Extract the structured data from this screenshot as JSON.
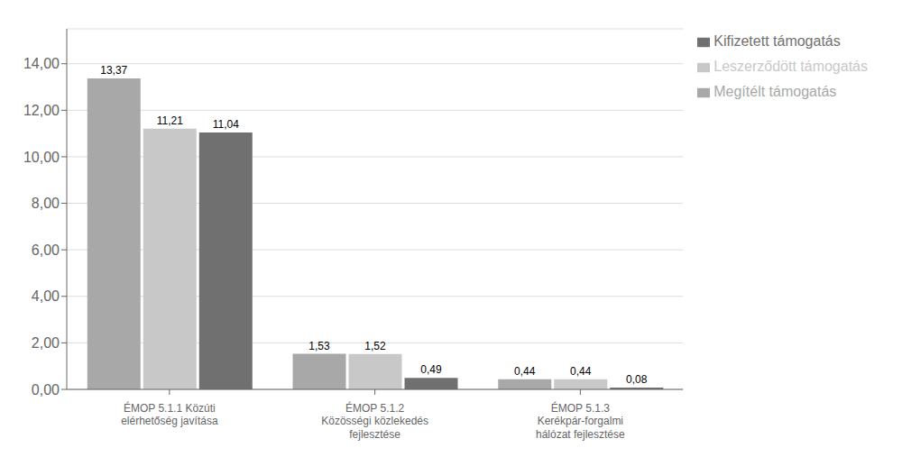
{
  "chart_data": {
    "type": "bar",
    "categories": [
      "ÉMOP 5.1.1 Közúti\nelérhetőség javítása",
      "ÉMOP 5.1.2\nKözösségi közlekedés\nfejlesztése",
      "ÉMOP 5.1.3\nKerékpár-forgalmi\nhálózat fejlesztése"
    ],
    "series": [
      {
        "name": "Megítélt támogatás",
        "color": "#a8a8a8",
        "values": [
          13.37,
          1.53,
          0.44
        ],
        "value_labels": [
          "13,37",
          "1,53",
          "0,44"
        ]
      },
      {
        "name": "Leszerződött támogatás",
        "color": "#c8c8c8",
        "values": [
          11.21,
          1.52,
          0.44
        ],
        "value_labels": [
          "11,21",
          "1,52",
          "0,44"
        ]
      },
      {
        "name": "Kifizetett támogatás",
        "color": "#707070",
        "values": [
          11.04,
          0.49,
          0.08
        ],
        "value_labels": [
          "11,04",
          "0,49",
          "0,08"
        ]
      }
    ],
    "ylim": [
      0,
      15.5
    ],
    "yticks": [
      {
        "value": 0,
        "label": "0,00"
      },
      {
        "value": 2,
        "label": "2,00"
      },
      {
        "value": 4,
        "label": "4,00"
      },
      {
        "value": 6,
        "label": "6,00"
      },
      {
        "value": 8,
        "label": "8,00"
      },
      {
        "value": 10,
        "label": "10,00"
      },
      {
        "value": 12,
        "label": "12,00"
      },
      {
        "value": 14,
        "label": "14,00"
      }
    ],
    "grid": true,
    "legend": "upper right",
    "data_labels": true
  }
}
